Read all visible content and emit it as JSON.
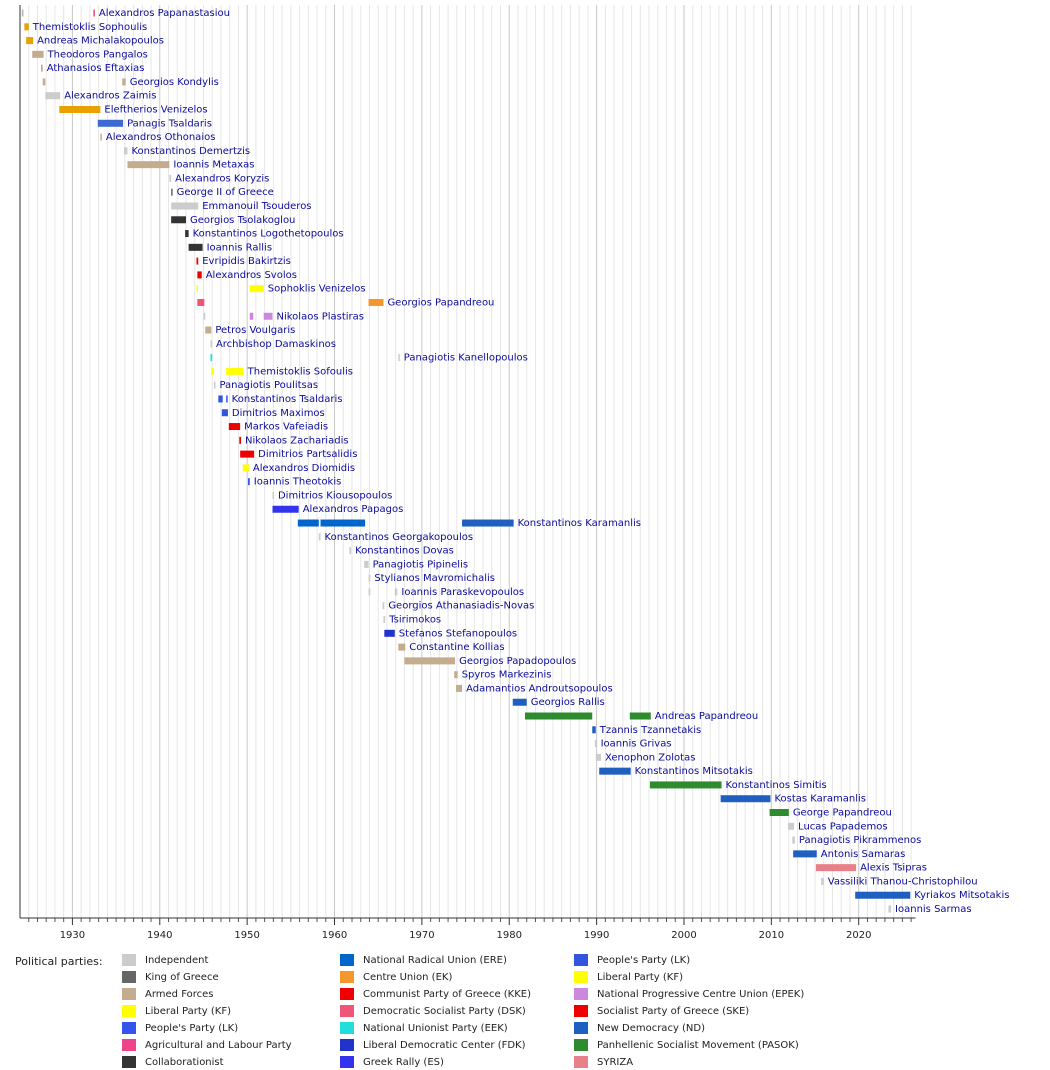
{
  "chart_data": {
    "type": "timeline",
    "xlim": [
      1924,
      2026.5
    ],
    "xticks": [
      1930,
      1940,
      1950,
      1960,
      1970,
      1980,
      1990,
      2000,
      2010,
      2020
    ],
    "minor_xticks": [
      1925,
      1926,
      1927,
      1928,
      1929,
      1931,
      1932,
      1933,
      1934,
      1935,
      1936,
      1937,
      1938,
      1939,
      1941,
      1942,
      1943,
      1944,
      1945,
      1946,
      1947,
      1948,
      1949,
      1951,
      1952,
      1953,
      1954,
      1955,
      1956,
      1957,
      1958,
      1959,
      1961,
      1962,
      1963,
      1964,
      1965,
      1966,
      1967,
      1968,
      1969,
      1971,
      1972,
      1973,
      1974,
      1975,
      1976,
      1977,
      1978,
      1979,
      1981,
      1982,
      1983,
      1984,
      1985,
      1986,
      1987,
      1988,
      1989,
      1991,
      1992,
      1993,
      1994,
      1995,
      1996,
      1997,
      1998,
      1999,
      2001,
      2002,
      2003,
      2004,
      2005,
      2006,
      2007,
      2008,
      2009,
      2011,
      2012,
      2013,
      2014,
      2015,
      2016,
      2017,
      2018,
      2019,
      2021,
      2022,
      2023,
      2024,
      2025,
      2026
    ],
    "grid": true,
    "rows": [
      {
        "name": "Alexandros Papanastasiou",
        "terms": [
          {
            "start": 1924.2,
            "end": 1924.4,
            "color": "#bbbbbb"
          },
          {
            "start": 1932.4,
            "end": 1932.55,
            "color": "#ee4488"
          }
        ]
      },
      {
        "name": "Themistoklis Sophoulis",
        "terms": [
          {
            "start": 1924.5,
            "end": 1925.0,
            "color": "#e9a100"
          }
        ]
      },
      {
        "name": "Andreas Michalakopoulos",
        "terms": [
          {
            "start": 1924.7,
            "end": 1925.5,
            "color": "#e9a100"
          }
        ]
      },
      {
        "name": "Theodoros Pangalos",
        "terms": [
          {
            "start": 1925.4,
            "end": 1926.7,
            "color": "#c4ad8f"
          }
        ]
      },
      {
        "name": "Athanasios Eftaxias",
        "terms": [
          {
            "start": 1926.4,
            "end": 1926.6,
            "color": "#c4ad8f"
          }
        ]
      },
      {
        "name": "Georgios Kondylis",
        "terms": [
          {
            "start": 1926.6,
            "end": 1926.9,
            "color": "#c4ad8f"
          },
          {
            "start": 1935.7,
            "end": 1936.1,
            "color": "#c4ad8f"
          }
        ]
      },
      {
        "name": "Alexandros Zaimis",
        "terms": [
          {
            "start": 1926.9,
            "end": 1928.6,
            "color": "#cccccc"
          }
        ]
      },
      {
        "name": "Eleftherios Venizelos",
        "terms": [
          {
            "start": 1928.5,
            "end": 1933.2,
            "color": "#e9a100"
          }
        ]
      },
      {
        "name": "Panagis Tsaldaris",
        "terms": [
          {
            "start": 1932.9,
            "end": 1935.8,
            "color": "#3c6ad0"
          }
        ]
      },
      {
        "name": "Alexandros Othonaios",
        "terms": [
          {
            "start": 1933.2,
            "end": 1933.3,
            "color": "#c4ad8f"
          }
        ]
      },
      {
        "name": "Konstantinos Demertzis",
        "terms": [
          {
            "start": 1935.9,
            "end": 1936.3,
            "color": "#cccccc"
          }
        ]
      },
      {
        "name": "Ioannis Metaxas",
        "terms": [
          {
            "start": 1936.3,
            "end": 1941.1,
            "color": "#c4ad8f"
          }
        ]
      },
      {
        "name": "Alexandros Koryzis",
        "terms": [
          {
            "start": 1941.1,
            "end": 1941.3,
            "color": "#cccccc"
          }
        ]
      },
      {
        "name": "George II of Greece",
        "terms": [
          {
            "start": 1941.3,
            "end": 1941.4,
            "color": "#666666"
          }
        ]
      },
      {
        "name": "Emmanouil Tsouderos",
        "terms": [
          {
            "start": 1941.3,
            "end": 1944.4,
            "color": "#cccccc"
          }
        ]
      },
      {
        "name": "Georgios Tsolakoglou",
        "terms": [
          {
            "start": 1941.3,
            "end": 1943.0,
            "color": "#333333"
          }
        ]
      },
      {
        "name": "Konstantinos Logothetopoulos",
        "terms": [
          {
            "start": 1942.9,
            "end": 1943.3,
            "color": "#333333"
          }
        ]
      },
      {
        "name": "Ioannis Rallis",
        "terms": [
          {
            "start": 1943.3,
            "end": 1944.9,
            "color": "#333333"
          }
        ]
      },
      {
        "name": "Evripidis Bakirtzis",
        "terms": [
          {
            "start": 1944.2,
            "end": 1944.4,
            "color": "#ee0000"
          }
        ]
      },
      {
        "name": "Alexandros Svolos",
        "terms": [
          {
            "start": 1944.3,
            "end": 1944.8,
            "color": "#ee0000"
          }
        ]
      },
      {
        "name": "Sophoklis Venizelos",
        "terms": [
          {
            "start": 1944.2,
            "end": 1944.3,
            "color": "#ffff00"
          },
          {
            "start": 1950.3,
            "end": 1951.9,
            "color": "#ffff00"
          }
        ]
      },
      {
        "name": "Georgios Papandreou",
        "terms": [
          {
            "start": 1944.3,
            "end": 1945.1,
            "color": "#ee5577"
          },
          {
            "start": 1963.9,
            "end": 1965.6,
            "color": "#f4982e"
          }
        ]
      },
      {
        "name": "Nikolaos Plastiras",
        "terms": [
          {
            "start": 1945.0,
            "end": 1945.2,
            "color": "#cccccc"
          },
          {
            "start": 1950.3,
            "end": 1950.7,
            "color": "#cc88dd"
          },
          {
            "start": 1951.9,
            "end": 1952.9,
            "color": "#cc88dd"
          }
        ]
      },
      {
        "name": "Petros Voulgaris",
        "terms": [
          {
            "start": 1945.2,
            "end": 1945.9,
            "color": "#c4ad8f"
          }
        ]
      },
      {
        "name": "Archbishop Damaskinos",
        "terms": [
          {
            "start": 1945.8,
            "end": 1945.9,
            "color": "#cccccc"
          }
        ]
      },
      {
        "name": "Panagiotis Kanellopoulos",
        "terms": [
          {
            "start": 1945.8,
            "end": 1946.0,
            "color": "#22dddd"
          },
          {
            "start": 1967.3,
            "end": 1967.4,
            "color": "#cccccc"
          }
        ]
      },
      {
        "name": "Themistoklis Sofoulis",
        "terms": [
          {
            "start": 1945.9,
            "end": 1946.2,
            "color": "#ffff00"
          },
          {
            "start": 1947.6,
            "end": 1949.6,
            "color": "#ffff00"
          }
        ]
      },
      {
        "name": "Panagiotis Poulitsas",
        "terms": [
          {
            "start": 1946.2,
            "end": 1946.3,
            "color": "#cccccc"
          }
        ]
      },
      {
        "name": "Konstantinos Tsaldaris",
        "terms": [
          {
            "start": 1946.7,
            "end": 1947.2,
            "color": "#3355dd"
          },
          {
            "start": 1947.6,
            "end": 1947.7,
            "color": "#3355dd"
          }
        ]
      },
      {
        "name": "Dimitrios Maximos",
        "terms": [
          {
            "start": 1947.1,
            "end": 1947.8,
            "color": "#3355dd"
          }
        ]
      },
      {
        "name": "Markos Vafeiadis",
        "terms": [
          {
            "start": 1947.9,
            "end": 1949.2,
            "color": "#ee0000"
          }
        ]
      },
      {
        "name": "Nikolaos Zachariadis",
        "terms": [
          {
            "start": 1949.1,
            "end": 1949.3,
            "color": "#ee0000"
          }
        ]
      },
      {
        "name": "Dimitrios Partsalidis",
        "terms": [
          {
            "start": 1949.2,
            "end": 1950.8,
            "color": "#ee0000"
          }
        ]
      },
      {
        "name": "Alexandros Diomidis",
        "terms": [
          {
            "start": 1949.5,
            "end": 1950.2,
            "color": "#ffff00"
          }
        ]
      },
      {
        "name": "Ioannis Theotokis",
        "terms": [
          {
            "start": 1950.1,
            "end": 1950.3,
            "color": "#3355dd"
          }
        ]
      },
      {
        "name": "Dimitrios Kiousopoulos",
        "terms": [
          {
            "start": 1952.9,
            "end": 1953.0,
            "color": "#cccccc"
          }
        ]
      },
      {
        "name": "Alexandros Papagos",
        "terms": [
          {
            "start": 1952.9,
            "end": 1955.9,
            "color": "#3333ee"
          }
        ]
      },
      {
        "name": "Konstantinos Karamanlis",
        "terms": [
          {
            "start": 1955.8,
            "end": 1958.2,
            "color": "#0066cc"
          },
          {
            "start": 1958.4,
            "end": 1963.5,
            "color": "#0066cc"
          },
          {
            "start": 1974.6,
            "end": 1980.5,
            "color": "#1e5fbf"
          }
        ]
      },
      {
        "name": "Konstantinos Georgakopoulos",
        "terms": [
          {
            "start": 1958.2,
            "end": 1958.4,
            "color": "#cccccc"
          }
        ]
      },
      {
        "name": "Konstantinos Dovas",
        "terms": [
          {
            "start": 1961.7,
            "end": 1961.9,
            "color": "#cccccc"
          }
        ]
      },
      {
        "name": "Panagiotis Pipinelis",
        "terms": [
          {
            "start": 1963.4,
            "end": 1963.9,
            "color": "#cccccc"
          }
        ]
      },
      {
        "name": "Stylianos Mavromichalis",
        "terms": [
          {
            "start": 1963.9,
            "end": 1964.1,
            "color": "#cccccc"
          }
        ]
      },
      {
        "name": "Ioannis Paraskevopoulos",
        "terms": [
          {
            "start": 1963.9,
            "end": 1964.1,
            "color": "#cccccc"
          },
          {
            "start": 1966.9,
            "end": 1967.2,
            "color": "#cccccc"
          }
        ]
      },
      {
        "name": "Georgios Athanasiadis-Novas",
        "terms": [
          {
            "start": 1965.5,
            "end": 1965.7,
            "color": "#cccccc"
          }
        ]
      },
      {
        "name": "Tsirimokos",
        "terms": [
          {
            "start": 1965.6,
            "end": 1965.8,
            "color": "#cccccc"
          }
        ]
      },
      {
        "name": "Stefanos Stefanopoulos",
        "terms": [
          {
            "start": 1965.7,
            "end": 1966.9,
            "color": "#2233cc"
          }
        ]
      },
      {
        "name": "Constantine Kollias",
        "terms": [
          {
            "start": 1967.3,
            "end": 1968.1,
            "color": "#c4ad8f"
          }
        ]
      },
      {
        "name": "Georgios Papadopoulos",
        "terms": [
          {
            "start": 1968.0,
            "end": 1973.8,
            "color": "#c4ad8f"
          }
        ]
      },
      {
        "name": "Spyros Markezinis",
        "terms": [
          {
            "start": 1973.7,
            "end": 1974.1,
            "color": "#c4ad8f"
          }
        ]
      },
      {
        "name": "Adamantios Androutsopoulos",
        "terms": [
          {
            "start": 1973.9,
            "end": 1974.6,
            "color": "#c4ad8f"
          }
        ]
      },
      {
        "name": "Georgios Rallis",
        "terms": [
          {
            "start": 1980.4,
            "end": 1982.0,
            "color": "#1e5fbf"
          }
        ]
      },
      {
        "name": "Andreas Papandreou",
        "terms": [
          {
            "start": 1981.8,
            "end": 1989.5,
            "color": "#2e8b2e"
          },
          {
            "start": 1993.8,
            "end": 1996.2,
            "color": "#2e8b2e"
          }
        ]
      },
      {
        "name": "Tzannis Tzannetakis",
        "terms": [
          {
            "start": 1989.5,
            "end": 1989.9,
            "color": "#1e5fbf"
          }
        ]
      },
      {
        "name": "Ioannis Grivas",
        "terms": [
          {
            "start": 1989.8,
            "end": 1990.0,
            "color": "#cccccc"
          }
        ]
      },
      {
        "name": "Xenophon Zolotas",
        "terms": [
          {
            "start": 1989.9,
            "end": 1990.5,
            "color": "#cccccc"
          }
        ]
      },
      {
        "name": "Konstantinos Mitsotakis",
        "terms": [
          {
            "start": 1990.3,
            "end": 1993.9,
            "color": "#1e5fbf"
          }
        ]
      },
      {
        "name": "Konstantinos Simitis",
        "terms": [
          {
            "start": 1996.1,
            "end": 2004.3,
            "color": "#2e8b2e"
          }
        ]
      },
      {
        "name": "Kostas Karamanlis",
        "terms": [
          {
            "start": 2004.2,
            "end": 2009.9,
            "color": "#1e5fbf"
          }
        ]
      },
      {
        "name": "George Papandreou",
        "terms": [
          {
            "start": 2009.8,
            "end": 2012.0,
            "color": "#2e8b2e"
          }
        ]
      },
      {
        "name": "Lucas Papademos",
        "terms": [
          {
            "start": 2011.9,
            "end": 2012.6,
            "color": "#cccccc"
          }
        ]
      },
      {
        "name": "Panagiotis Pikrammenos",
        "terms": [
          {
            "start": 2012.4,
            "end": 2012.7,
            "color": "#cccccc"
          }
        ]
      },
      {
        "name": "Antonis Samaras",
        "terms": [
          {
            "start": 2012.5,
            "end": 2015.2,
            "color": "#1e5fbf"
          }
        ]
      },
      {
        "name": "Alexis Tsipras",
        "terms": [
          {
            "start": 2015.1,
            "end": 2019.7,
            "color": "#e8808a"
          }
        ]
      },
      {
        "name": "Vassiliki Thanou-Christophilou",
        "terms": [
          {
            "start": 2015.7,
            "end": 2016.0,
            "color": "#cccccc"
          }
        ]
      },
      {
        "name": "Kyriakos Mitsotakis",
        "terms": [
          {
            "start": 2019.6,
            "end": 2025.9,
            "color": "#1e5fbf"
          }
        ]
      },
      {
        "name": "Ioannis Sarmas",
        "terms": [
          {
            "start": 2023.4,
            "end": 2023.7,
            "color": "#cccccc"
          }
        ]
      }
    ],
    "legend_title": "Political parties:",
    "parties": [
      {
        "name": "Independent",
        "color": "#cccccc"
      },
      {
        "name": "King of Greece",
        "color": "#666666"
      },
      {
        "name": "Armed Forces",
        "color": "#c4ad8f"
      },
      {
        "name": "Liberal Party (KF)",
        "color": "#ffff00"
      },
      {
        "name": "People's Party (LK)",
        "color": "#3355ee"
      },
      {
        "name": "Agricultural and Labour Party",
        "color": "#ee4488"
      },
      {
        "name": "Collaborationist",
        "color": "#333333"
      },
      {
        "name": "National Radical Union (ERE)",
        "color": "#0066cc"
      },
      {
        "name": "Centre Union (EK)",
        "color": "#f4982e"
      },
      {
        "name": "Communist Party of Greece (KKE)",
        "color": "#ee0000"
      },
      {
        "name": "Democratic Socialist Party (DSK)",
        "color": "#ee5577"
      },
      {
        "name": "National Unionist Party (EEK)",
        "color": "#22dddd"
      },
      {
        "name": "Liberal Democratic Center (FDK)",
        "color": "#2233cc"
      },
      {
        "name": "Greek Rally (ES)",
        "color": "#3333ee"
      },
      {
        "name": "People's Party (LK)",
        "color": "#3355dd"
      },
      {
        "name": "Liberal Party (KF)",
        "color": "#ffff00"
      },
      {
        "name": "National Progressive Centre Union (EPEK)",
        "color": "#cc88dd"
      },
      {
        "name": "Socialist Party of Greece (SKE)",
        "color": "#ee0000"
      },
      {
        "name": "New Democracy (ND)",
        "color": "#1e5fbf"
      },
      {
        "name": "Panhellenic Socialist Movement (PASOK)",
        "color": "#2e8b2e"
      },
      {
        "name": "SYRIZA",
        "color": "#e8808a"
      }
    ]
  }
}
